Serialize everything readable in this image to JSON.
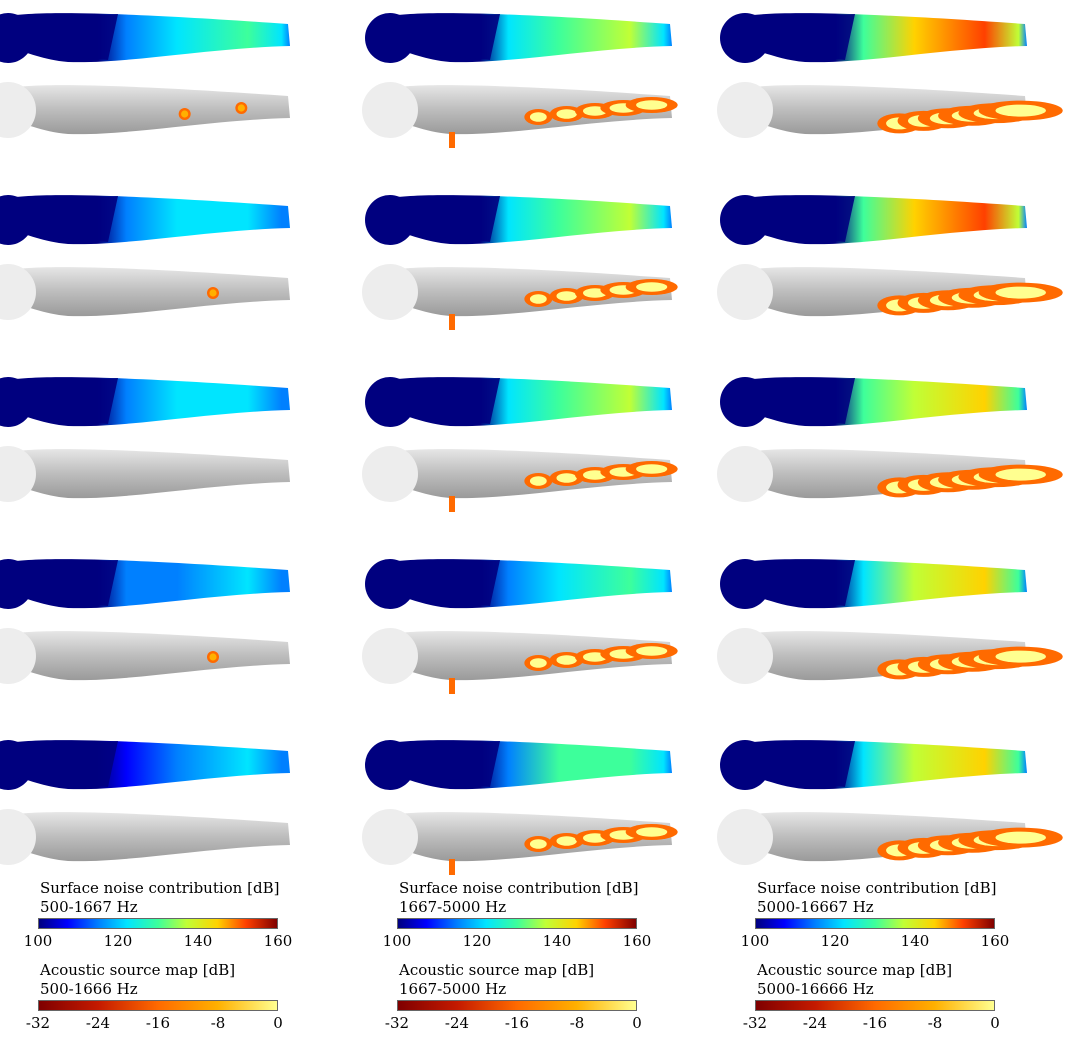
{
  "columns": [
    {
      "surface_title": "Surface noise contribution [dB]",
      "surface_range": "500-1667 Hz",
      "surface_ticks": [
        "100",
        "120",
        "140",
        "160"
      ],
      "source_title": "Acoustic source map [dB]",
      "source_range": "500-1666 Hz",
      "source_ticks": [
        "-32",
        "-24",
        "-16",
        "-8",
        "0"
      ]
    },
    {
      "surface_title": "Surface noise contribution [dB]",
      "surface_range": "1667-5000 Hz",
      "surface_ticks": [
        "100",
        "120",
        "140",
        "160"
      ],
      "source_title": "Acoustic source map [dB]",
      "source_range": "1667-5000 Hz",
      "source_ticks": [
        "-32",
        "-24",
        "-16",
        "-8",
        "0"
      ]
    },
    {
      "surface_title": "Surface noise contribution [dB]",
      "surface_range": "5000-16667 Hz",
      "surface_ticks": [
        "100",
        "120",
        "140",
        "160"
      ],
      "source_title": "Acoustic source map [dB]",
      "source_range": "5000-16666 Hz",
      "source_ticks": [
        "-32",
        "-24",
        "-16",
        "-8",
        "0"
      ]
    }
  ],
  "colormaps": {
    "surface": [
      "#00007f",
      "#0000ff",
      "#0080ff",
      "#00e5ff",
      "#3dff9b",
      "#c0ff36",
      "#ffd200",
      "#ff4000",
      "#800000"
    ],
    "source": [
      "#7f0000",
      "#c41a00",
      "#ff6a00",
      "#ffb000",
      "#ffff90"
    ]
  },
  "intensity": {
    "surface_levels_by_row_col": [
      [
        0.45,
        0.6,
        0.85
      ],
      [
        0.4,
        0.58,
        0.82
      ],
      [
        0.38,
        0.57,
        0.8
      ],
      [
        0.36,
        0.5,
        0.78
      ],
      [
        0.34,
        0.52,
        0.76
      ]
    ]
  }
}
